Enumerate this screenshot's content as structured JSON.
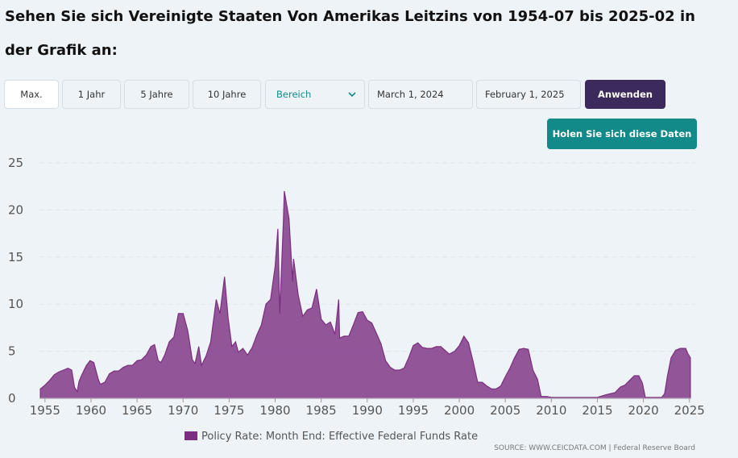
{
  "header": {
    "title": "Sehen Sie sich Vereinigte Staaten Von Amerikas Leitzins von 1954-07 bis 2025-02 in der Grafik an:"
  },
  "controls": {
    "ranges": [
      "Max.",
      "1 Jahr",
      "5 Jahre",
      "10 Jahre"
    ],
    "select": "Bereich",
    "start_date": "March 1, 2024",
    "end_date": "February 1, 2025",
    "apply": "Anwenden",
    "get_data": "Holen Sie sich diese Daten"
  },
  "chart_data": {
    "type": "area",
    "x": [
      1954.5,
      1955,
      1955.5,
      1956,
      1956.5,
      1957,
      1957.5,
      1957.9,
      1958.2,
      1958.5,
      1958.7,
      1959,
      1959.5,
      1959.9,
      1960.3,
      1960.8,
      1961,
      1961.5,
      1962,
      1962.5,
      1963,
      1963.5,
      1964,
      1964.5,
      1965,
      1965.5,
      1966,
      1966.5,
      1966.9,
      1967.3,
      1967.6,
      1968,
      1968.5,
      1969,
      1969.5,
      1970,
      1970.5,
      1971,
      1971.3,
      1971.7,
      1972,
      1972.5,
      1973,
      1973.6,
      1974,
      1974.5,
      1974.9,
      1975.3,
      1975.7,
      1976,
      1976.5,
      1977,
      1977.5,
      1978,
      1978.5,
      1979,
      1979.5,
      1980,
      1980.3,
      1980.5,
      1980.9,
      1981,
      1981.5,
      1981.9,
      1982,
      1982.5,
      1983,
      1983.5,
      1984,
      1984.5,
      1985,
      1985.5,
      1986,
      1986.5,
      1986.9,
      1987,
      1987.5,
      1988,
      1988.5,
      1989,
      1989.5,
      1990,
      1990.5,
      1991,
      1991.5,
      1992,
      1992.5,
      1993,
      1993.5,
      1994,
      1994.5,
      1995,
      1995.5,
      1996,
      1996.5,
      1997,
      1997.5,
      1998,
      1998.9,
      1999.5,
      2000,
      2000.5,
      2001,
      2001.5,
      2002,
      2002.5,
      2003,
      2003.5,
      2004,
      2004.5,
      2005,
      2005.5,
      2006,
      2006.5,
      2007,
      2007.5,
      2008,
      2008.5,
      2008.9,
      2009.5,
      2010,
      2011,
      2012,
      2013,
      2014,
      2015,
      2016,
      2016.9,
      2017.5,
      2018,
      2018.5,
      2019,
      2019.5,
      2019.9,
      2020.2,
      2021,
      2022,
      2022.3,
      2022.6,
      2023,
      2023.5,
      2024,
      2024.6,
      2024.8,
      2025.1
    ],
    "series": [
      {
        "name": "Policy Rate: Month End: Effective Federal Funds Rate",
        "color": "#7b2e7f",
        "values": [
          1.0,
          1.4,
          1.9,
          2.5,
          2.8,
          3.0,
          3.2,
          3.0,
          1.2,
          0.7,
          1.8,
          2.5,
          3.5,
          4.0,
          3.8,
          2.0,
          1.5,
          1.7,
          2.6,
          2.9,
          2.9,
          3.3,
          3.5,
          3.5,
          4.0,
          4.1,
          4.6,
          5.5,
          5.7,
          4.0,
          3.8,
          4.6,
          6.0,
          6.5,
          9.0,
          9.0,
          7.2,
          4.1,
          3.7,
          5.5,
          3.5,
          4.5,
          6.0,
          10.5,
          9.0,
          12.9,
          8.5,
          5.5,
          6.0,
          4.9,
          5.3,
          4.6,
          5.4,
          6.7,
          7.8,
          10.0,
          10.5,
          14.0,
          18.0,
          9.0,
          18.9,
          22.0,
          19.1,
          12.4,
          14.8,
          11.0,
          8.7,
          9.4,
          9.6,
          11.6,
          8.4,
          7.8,
          8.1,
          6.8,
          10.5,
          6.4,
          6.6,
          6.6,
          7.8,
          9.1,
          9.2,
          8.3,
          8.0,
          6.9,
          5.8,
          4.0,
          3.3,
          3.0,
          3.0,
          3.2,
          4.3,
          5.6,
          5.9,
          5.4,
          5.3,
          5.3,
          5.5,
          5.5,
          4.7,
          5.0,
          5.6,
          6.6,
          5.9,
          3.9,
          1.7,
          1.7,
          1.3,
          1.0,
          1.0,
          1.3,
          2.3,
          3.2,
          4.3,
          5.2,
          5.3,
          5.2,
          3.0,
          2.0,
          0.2,
          0.2,
          0.1,
          0.1,
          0.1,
          0.1,
          0.1,
          0.1,
          0.4,
          0.6,
          1.2,
          1.4,
          1.9,
          2.4,
          2.4,
          1.6,
          0.1,
          0.1,
          0.1,
          0.5,
          2.3,
          4.3,
          5.1,
          5.3,
          5.3,
          4.8,
          4.3
        ]
      }
    ],
    "xlim": [
      1954.4,
      2025.2
    ],
    "xticks": [
      1955,
      1960,
      1965,
      1970,
      1975,
      1980,
      1985,
      1990,
      1995,
      2000,
      2005,
      2010,
      2015,
      2020,
      2025
    ],
    "ylim": [
      0,
      25
    ],
    "yticks": [
      0,
      5,
      10,
      15,
      20,
      25
    ],
    "grid": true,
    "legend": "bottom",
    "source": "SOURCE: WWW.CEICDATA.COM | Federal Reserve Board"
  }
}
